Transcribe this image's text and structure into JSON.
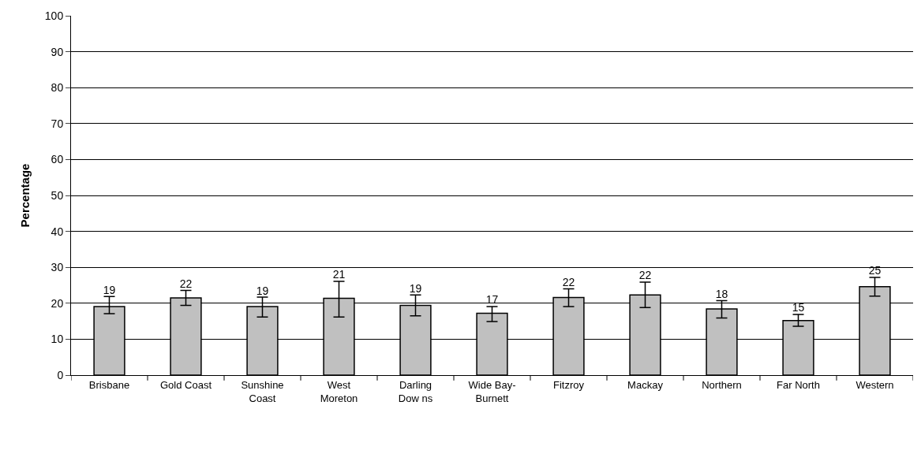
{
  "chart_data": {
    "type": "bar",
    "ylabel": "Percentage",
    "categories": [
      "Brisbane",
      "Gold Coast",
      "Sunshine Coast",
      "West Moreton",
      "Darling Dow ns",
      "Wide Bay-Burnett",
      "Fitzroy",
      "Mackay",
      "Northern",
      "Far North",
      "Western"
    ],
    "values": [
      19.1,
      21.5,
      19.1,
      21.4,
      19.4,
      17.2,
      21.6,
      22.3,
      18.4,
      15.2,
      24.6
    ],
    "value_labels": [
      "19",
      "22",
      "19",
      "21",
      "19",
      "17",
      "22",
      "22",
      "18",
      "15",
      "25"
    ],
    "errors": [
      [
        17.1,
        21.9
      ],
      [
        19.4,
        23.6
      ],
      [
        16.2,
        21.7
      ],
      [
        16.2,
        26.1
      ],
      [
        16.5,
        22.3
      ],
      [
        14.9,
        19.1
      ],
      [
        19.1,
        24.0
      ],
      [
        18.8,
        25.9
      ],
      [
        15.9,
        20.7
      ],
      [
        13.6,
        16.9
      ],
      [
        22.0,
        27.2
      ]
    ],
    "color": "#c0c0c0",
    "ylim": [
      0,
      100
    ],
    "yticks": [
      0,
      10,
      20,
      30,
      40,
      50,
      60,
      70,
      80,
      90,
      100
    ],
    "grid": "y"
  }
}
